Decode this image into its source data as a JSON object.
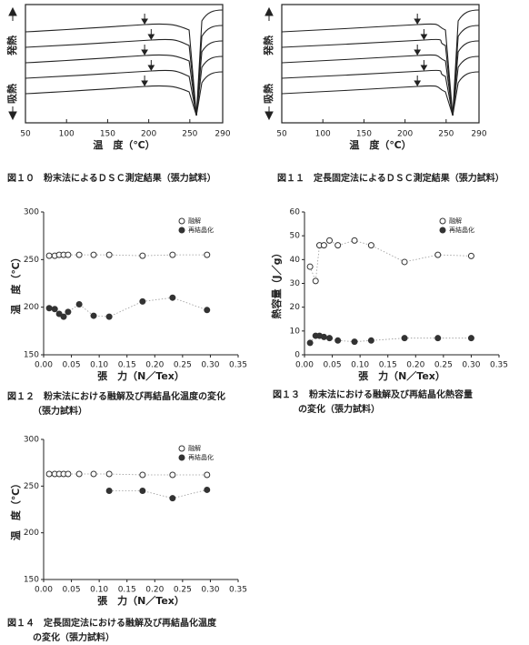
{
  "chart_data": [
    {
      "type": "dsc",
      "xlim": [
        50,
        290
      ],
      "xticks": [
        50,
        100,
        150,
        200,
        250,
        290
      ],
      "xlabel": "温　度（℃）",
      "exo_label": "発熱",
      "endo_label": "吸熱",
      "caption": [
        "図１０　粉末法によるＤＳＣ測定結果（張力試料）"
      ]
    },
    {
      "type": "dsc",
      "xlim": [
        50,
        290
      ],
      "xticks": [
        50,
        100,
        150,
        200,
        250,
        290
      ],
      "xlabel": "温　度（℃）",
      "exo_label": "発熱",
      "endo_label": "吸熱",
      "caption": [
        "図１１　定長固定法によるＤＳＣ測定結果（張力試料）"
      ]
    },
    {
      "type": "scatter",
      "xlabel": "張　力（N／Tex）",
      "ylabel": "温　度（℃）",
      "xlim": [
        0,
        0.35
      ],
      "ylim": [
        150,
        300
      ],
      "xticks": [
        {
          "value": 0,
          "label": "0.00"
        },
        {
          "value": 0.05,
          "label": "0.05"
        },
        {
          "value": 0.1,
          "label": "0.10"
        },
        {
          "value": 0.15,
          "label": "0.15"
        },
        {
          "value": 0.2,
          "label": "0.20"
        },
        {
          "value": 0.25,
          "label": "0.25"
        },
        {
          "value": 0.3,
          "label": "0.30"
        },
        {
          "value": 0.35,
          "label": "0.35"
        }
      ],
      "yticks": [
        150,
        200,
        250,
        300
      ],
      "series": [
        {
          "name": "融解",
          "marker": "open",
          "color": "#333333",
          "x": [
            0.01,
            0.02,
            0.028,
            0.036,
            0.044,
            0.064,
            0.09,
            0.118,
            0.178,
            0.232,
            0.294
          ],
          "values": [
            254,
            254,
            255,
            255,
            255,
            255,
            255,
            255,
            254,
            255,
            255
          ]
        },
        {
          "name": "再結晶化",
          "marker": "filled",
          "color": "#333333",
          "x": [
            0.01,
            0.02,
            0.028,
            0.036,
            0.044,
            0.064,
            0.09,
            0.118,
            0.178,
            0.232,
            0.294
          ],
          "values": [
            199,
            198,
            193,
            190,
            195,
            203,
            191,
            190,
            206,
            210,
            197
          ]
        }
      ],
      "caption": [
        "図１２　粉末法における融解及び再結晶化温度の変化",
        "（張力試料）"
      ]
    },
    {
      "type": "scatter",
      "xlabel": "張　力（N／Tex）",
      "ylabel": "熱容量（J／g）",
      "xlim": [
        0,
        0.35
      ],
      "ylim": [
        0,
        60
      ],
      "xticks": [
        {
          "value": 0,
          "label": "0.00"
        },
        {
          "value": 0.05,
          "label": "0.05"
        },
        {
          "value": 0.1,
          "label": "0.10"
        },
        {
          "value": 0.15,
          "label": "0.15"
        },
        {
          "value": 0.2,
          "label": "0.20"
        },
        {
          "value": 0.25,
          "label": "0.25"
        },
        {
          "value": 0.3,
          "label": "0.30"
        },
        {
          "value": 0.35,
          "label": "0.35"
        }
      ],
      "yticks": [
        0,
        10,
        20,
        30,
        40,
        50,
        60
      ],
      "series": [
        {
          "name": "融解",
          "marker": "open",
          "color": "#333333",
          "x": [
            0.01,
            0.02,
            0.027,
            0.035,
            0.045,
            0.06,
            0.09,
            0.12,
            0.18,
            0.24,
            0.3
          ],
          "values": [
            37,
            31,
            46,
            46,
            48,
            46,
            48,
            46,
            39,
            42,
            41.5
          ]
        },
        {
          "name": "再結晶化",
          "marker": "filled",
          "color": "#333333",
          "x": [
            0.01,
            0.02,
            0.027,
            0.035,
            0.045,
            0.06,
            0.09,
            0.12,
            0.18,
            0.24,
            0.3
          ],
          "values": [
            5,
            8,
            8,
            7.5,
            7,
            6,
            5.5,
            6,
            7,
            7,
            7
          ]
        }
      ],
      "caption": [
        "図１３　粉末法における融解及び再結晶化熱容量",
        "の変化（張力試料）"
      ]
    },
    {
      "type": "scatter",
      "xlabel": "張　力（N／Tex）",
      "ylabel": "温　度（℃）",
      "xlim": [
        0,
        0.35
      ],
      "ylim": [
        150,
        300
      ],
      "xticks": [
        {
          "value": 0,
          "label": "0.00"
        },
        {
          "value": 0.05,
          "label": "0.05"
        },
        {
          "value": 0.1,
          "label": "0.10"
        },
        {
          "value": 0.15,
          "label": "0.15"
        },
        {
          "value": 0.2,
          "label": "0.20"
        },
        {
          "value": 0.25,
          "label": "0.25"
        },
        {
          "value": 0.3,
          "label": "0.30"
        },
        {
          "value": 0.35,
          "label": "0.35"
        }
      ],
      "yticks": [
        150,
        200,
        250,
        300
      ],
      "series": [
        {
          "name": "融解",
          "marker": "open",
          "color": "#333333",
          "x": [
            0.01,
            0.02,
            0.028,
            0.036,
            0.044,
            0.064,
            0.09,
            0.118,
            0.178,
            0.232,
            0.294
          ],
          "values": [
            263,
            263,
            263,
            263,
            263,
            263,
            263,
            263,
            262,
            262,
            262
          ]
        },
        {
          "name": "再結晶化",
          "marker": "filled",
          "color": "#333333",
          "x": [
            0.118,
            0.178,
            0.232,
            0.294
          ],
          "values": [
            245,
            245,
            237,
            246
          ]
        }
      ],
      "caption": [
        "図１４　定長固定法における融解及び再結晶化温度",
        "の変化（張力試料）"
      ]
    }
  ]
}
